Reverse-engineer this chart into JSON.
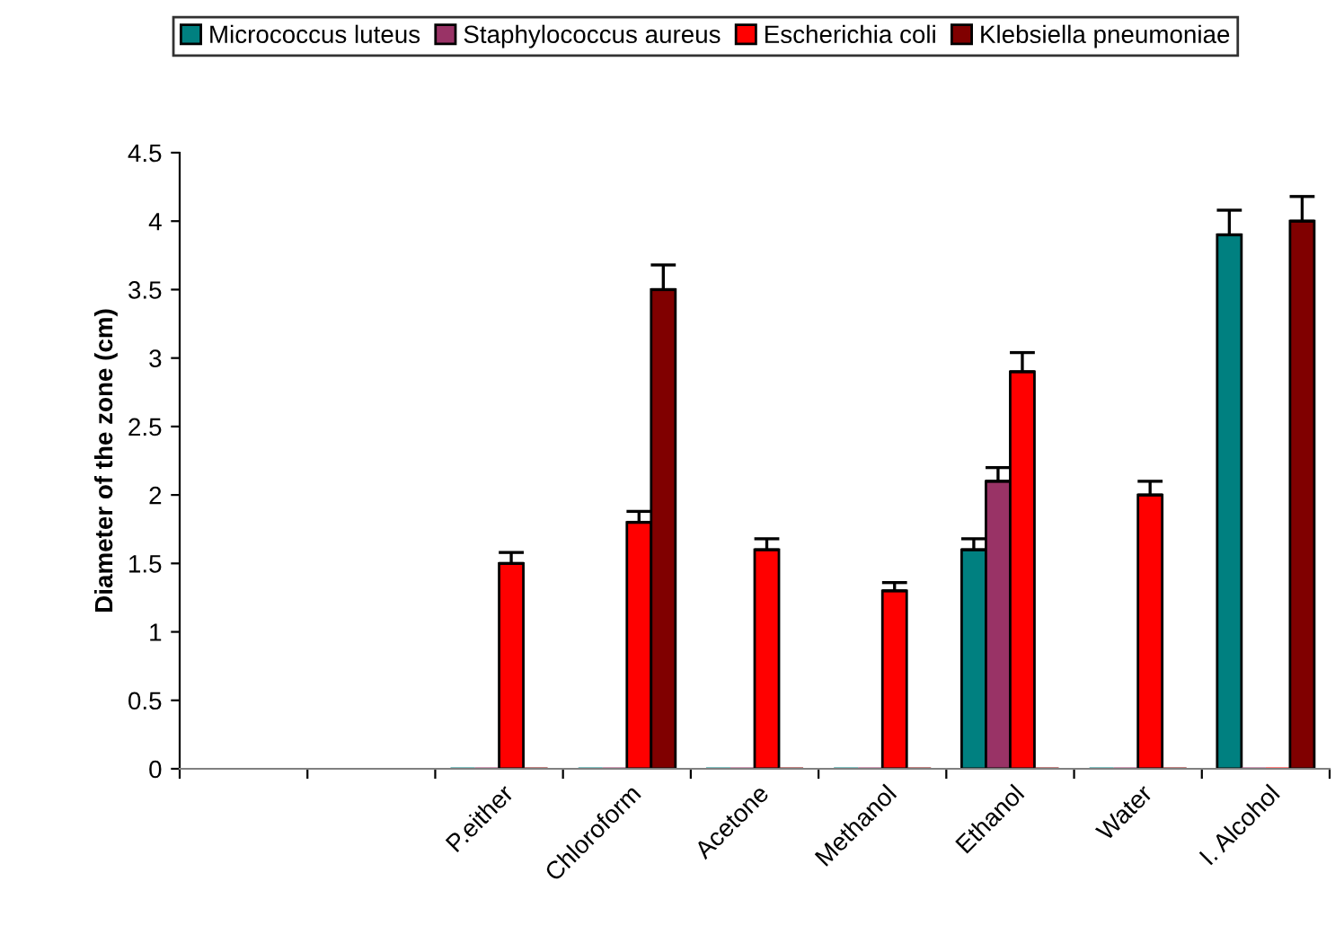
{
  "chart_data": {
    "type": "bar",
    "categories": [
      null,
      null,
      "P.either",
      "Chloroform",
      "Acetone",
      "Methanol",
      "Ethanol",
      "Water",
      "I. Alcohol"
    ],
    "ylabel": "Diameter of the zone (cm)",
    "ylim": [
      0,
      4.5
    ],
    "yticks": [
      0,
      0.5,
      1,
      1.5,
      2,
      2.5,
      3,
      3.5,
      4,
      4.5
    ],
    "grid": false,
    "legend": "top",
    "series": [
      {
        "name": "Micrococcus luteus",
        "color": "#008080",
        "values": [
          null,
          null,
          0,
          0,
          0,
          0,
          1.6,
          0,
          3.9
        ],
        "errors": [
          null,
          null,
          null,
          null,
          null,
          null,
          [
            1.6,
            1.68
          ],
          null,
          [
            3.9,
            4.08
          ]
        ]
      },
      {
        "name": "Staphylococcus aureus",
        "color": "#993366",
        "values": [
          null,
          null,
          0,
          0,
          0,
          0,
          2.1,
          0,
          0
        ],
        "errors": [
          null,
          null,
          null,
          null,
          null,
          null,
          [
            2.1,
            2.2
          ],
          null,
          null
        ]
      },
      {
        "name": "Escherichia coli",
        "color": "#ff0000",
        "values": [
          null,
          null,
          1.5,
          1.8,
          1.6,
          1.3,
          2.9,
          2.0,
          0
        ],
        "errors": [
          null,
          null,
          [
            1.5,
            1.58
          ],
          [
            1.8,
            1.88
          ],
          [
            1.6,
            1.68
          ],
          [
            1.3,
            1.36
          ],
          [
            2.9,
            3.04
          ],
          [
            2.0,
            2.1
          ],
          null
        ]
      },
      {
        "name": "Klebsiella pneumoniae",
        "color": "#800000",
        "values": [
          null,
          null,
          0,
          3.5,
          0,
          0,
          0,
          0,
          4.0
        ],
        "errors": [
          null,
          null,
          null,
          [
            3.5,
            3.68
          ],
          null,
          null,
          null,
          null,
          [
            4.0,
            4.18
          ]
        ]
      }
    ]
  }
}
